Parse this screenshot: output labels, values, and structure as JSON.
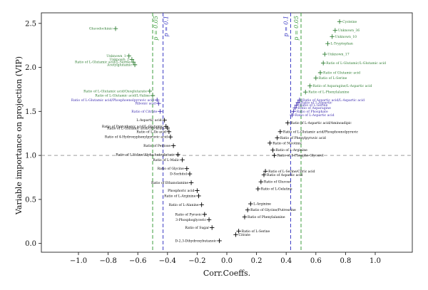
{
  "chart_data": {
    "type": "scatter",
    "xlabel": "Corr.Coeffs.",
    "ylabel": "Variable importance on projection (VIP)",
    "xlim": [
      -1.25,
      1.25
    ],
    "ylim": [
      -0.1,
      2.62
    ],
    "x_ticks": [
      -1.0,
      -0.8,
      -0.6,
      -0.4,
      -0.2,
      0.0,
      0.2,
      0.4,
      0.6,
      0.8,
      1.0
    ],
    "x_tick_labels": [
      "−1.0",
      "−0.8",
      "−0.6",
      "−0.4",
      "−0.2",
      "0.0",
      "0.2",
      "0.4",
      "0.6",
      "0.8",
      "1.0"
    ],
    "y_ticks": [
      0.0,
      0.5,
      1.0,
      1.5,
      2.0,
      2.5
    ],
    "y_tick_labels": [
      "0.0",
      "0.5",
      "1.0",
      "1.5",
      "2.0",
      "2.5"
    ],
    "grid": false,
    "colors": {
      "significant_p005": "#2e7d32",
      "significant_p01": "#3f2fb0",
      "nonsignificant": "#000000",
      "threshold_line": "#9e9e9e",
      "p005_line": "#3e9e3e",
      "p01_line": "#3b3bc4"
    },
    "reference_lines": {
      "vip_threshold": 1.0,
      "p005": [
        -0.5,
        0.5
      ],
      "p01": [
        -0.43,
        0.43
      ],
      "p005_label": "p = 0.05",
      "p01_label": "p = 0.1"
    },
    "labeled_points": [
      {
        "label": "Glucodochinic",
        "x": -0.75,
        "y": 2.44,
        "group": "p005"
      },
      {
        "label": "Unknown_1",
        "x": -0.66,
        "y": 2.13,
        "group": "p005"
      },
      {
        "label": "Unknown_2",
        "x": -0.64,
        "y": 2.09,
        "group": "p005"
      },
      {
        "label": "Ratio of L-Glutamic acid/L-Serine",
        "x": -0.63,
        "y": 2.06,
        "group": "p005"
      },
      {
        "label": "Acetylglutamic",
        "x": -0.62,
        "y": 2.03,
        "group": "p005"
      },
      {
        "label": "Ratio of L-Glutamic acid/Oxoglutarate",
        "x": -0.52,
        "y": 1.73,
        "group": "p005"
      },
      {
        "label": "Ratio of L-Glutamic acid/L-Valine",
        "x": -0.5,
        "y": 1.68,
        "group": "p005"
      },
      {
        "label": "Ratio of L-Glutamic acid/Phosphoenolpyruvic acid",
        "x": -0.47,
        "y": 1.63,
        "group": "p01"
      },
      {
        "label": "Ribonic acid",
        "x": -0.46,
        "y": 1.59,
        "group": "p01"
      },
      {
        "label": "Ratio of Citrate",
        "x": -0.45,
        "y": 1.5,
        "group": "p01"
      },
      {
        "label": "L-Aspartic acid",
        "x": -0.42,
        "y": 1.4,
        "group": "ns"
      },
      {
        "label": "Ratio of Pantothenic acid/L-Glutamic",
        "x": -0.41,
        "y": 1.33,
        "group": "ns"
      },
      {
        "label": "Ratio of L-Glutamic acid/Glycerate",
        "x": -0.4,
        "y": 1.31,
        "group": "ns"
      },
      {
        "label": "Ratio of L-Ile acid",
        "x": -0.39,
        "y": 1.27,
        "group": "ns"
      },
      {
        "label": "Ratio of 4-Hydroxyphenylpyruvic acid",
        "x": -0.38,
        "y": 1.21,
        "group": "ns"
      },
      {
        "label": "Ratio of Pentose",
        "x": -0.36,
        "y": 1.11,
        "group": "ns"
      },
      {
        "label": "Ratio of L-Valine/Alpha-ketoglutaric",
        "x": -0.33,
        "y": 1.01,
        "group": "ns"
      },
      {
        "label": "Ratio of L-Malic",
        "x": -0.3,
        "y": 0.95,
        "group": "ns"
      },
      {
        "label": "Ratio of Glycine",
        "x": -0.27,
        "y": 0.85,
        "group": "ns"
      },
      {
        "label": "D-Sorbitol",
        "x": -0.25,
        "y": 0.79,
        "group": "ns"
      },
      {
        "label": "Ratio of Ethanolamine",
        "x": -0.24,
        "y": 0.69,
        "group": "ns"
      },
      {
        "label": "Phosphoric acid",
        "x": -0.2,
        "y": 0.6,
        "group": "ns"
      },
      {
        "label": "Ratio of L-Arginine",
        "x": -0.19,
        "y": 0.54,
        "group": "ns"
      },
      {
        "label": "Ratio of L-Alanine",
        "x": -0.17,
        "y": 0.44,
        "group": "ns"
      },
      {
        "label": "Ratio of Pyruvic",
        "x": -0.15,
        "y": 0.33,
        "group": "ns"
      },
      {
        "label": "3-Phosphoglyceric",
        "x": -0.12,
        "y": 0.27,
        "group": "ns"
      },
      {
        "label": "Ratio of Sugar",
        "x": -0.1,
        "y": 0.18,
        "group": "ns"
      },
      {
        "label": "D-2,3-Dihydroxybutanoic",
        "x": -0.05,
        "y": 0.03,
        "group": "ns"
      },
      {
        "label": "Citrate",
        "x": 0.06,
        "y": 0.1,
        "group": "ns"
      },
      {
        "label": "Ratio of L-Serine",
        "x": 0.08,
        "y": 0.14,
        "group": "ns"
      },
      {
        "label": "Ratio of Phenylalanine",
        "x": 0.12,
        "y": 0.3,
        "group": "ns"
      },
      {
        "label": "Ratio of Glycine/Putrescine",
        "x": 0.14,
        "y": 0.38,
        "group": "ns"
      },
      {
        "label": "L-Arginine",
        "x": 0.16,
        "y": 0.45,
        "group": "ns"
      },
      {
        "label": "Ratio of L-Gelatine",
        "x": 0.21,
        "y": 0.62,
        "group": "ns"
      },
      {
        "label": "Ratio of Glucose",
        "x": 0.23,
        "y": 0.7,
        "group": "ns"
      },
      {
        "label": "Ratio of Aspartic acid",
        "x": 0.25,
        "y": 0.78,
        "group": "ns"
      },
      {
        "label": "Ratio of L-Serine/Citric acid",
        "x": 0.26,
        "y": 0.82,
        "group": "ns"
      },
      {
        "label": "Ratio of 5-Phospho-Glycerol",
        "x": 0.32,
        "y": 1.0,
        "group": "ns"
      },
      {
        "label": "Ratio of L-Arginine",
        "x": 0.31,
        "y": 1.06,
        "group": "ns"
      },
      {
        "label": "Ratio of Nicotinic",
        "x": 0.29,
        "y": 1.14,
        "group": "ns"
      },
      {
        "label": "Ratio of Phenylpyruvic acid",
        "x": 0.34,
        "y": 1.2,
        "group": "ns"
      },
      {
        "label": "Ratio of L-Glutamic acid/Phosphoenolpyruvic",
        "x": 0.36,
        "y": 1.27,
        "group": "ns"
      },
      {
        "label": "Ratio of L-Aspartic acid/Aminoadipic",
        "x": 0.41,
        "y": 1.37,
        "group": "ns"
      },
      {
        "label": "Ratio of L-Aspartic acid",
        "x": 0.44,
        "y": 1.46,
        "group": "p01"
      },
      {
        "label": "Ratio of Phosphate",
        "x": 0.45,
        "y": 1.5,
        "group": "p01"
      },
      {
        "label": "Ratio of Asparagine",
        "x": 0.46,
        "y": 1.54,
        "group": "p01"
      },
      {
        "label": "Ratio of L-Serine",
        "x": 0.47,
        "y": 1.57,
        "group": "p01"
      },
      {
        "label": "Ratio of 1-Aspartic",
        "x": 0.48,
        "y": 1.6,
        "group": "p01"
      },
      {
        "label": "Ratio of Aspartic acid/L-Aspartic acid",
        "x": 0.49,
        "y": 1.63,
        "group": "p01"
      },
      {
        "label": "Ratio of L-Phenylalanine",
        "x": 0.53,
        "y": 1.72,
        "group": "p005"
      },
      {
        "label": "Ratio of Asparagine/L-Aspartic acid",
        "x": 0.56,
        "y": 1.79,
        "group": "p005"
      },
      {
        "label": "Ratio of L-Serine",
        "x": 0.6,
        "y": 1.88,
        "group": "p005"
      },
      {
        "label": "Ratio of Glutamic acid",
        "x": 0.63,
        "y": 1.94,
        "group": "p005"
      },
      {
        "label": "Ratio of L-Glutamic/L-Glutamic acid",
        "x": 0.65,
        "y": 2.05,
        "group": "p005"
      },
      {
        "label": "Unknown_17",
        "x": 0.66,
        "y": 2.15,
        "group": "p005"
      },
      {
        "label": "L-Tryptophan",
        "x": 0.68,
        "y": 2.27,
        "group": "p005"
      },
      {
        "label": "Unknown_10",
        "x": 0.71,
        "y": 2.35,
        "group": "p005"
      },
      {
        "label": "Unknown_36",
        "x": 0.73,
        "y": 2.42,
        "group": "p005"
      },
      {
        "label": "Cysteine",
        "x": 0.76,
        "y": 2.52,
        "group": "p005"
      }
    ]
  }
}
